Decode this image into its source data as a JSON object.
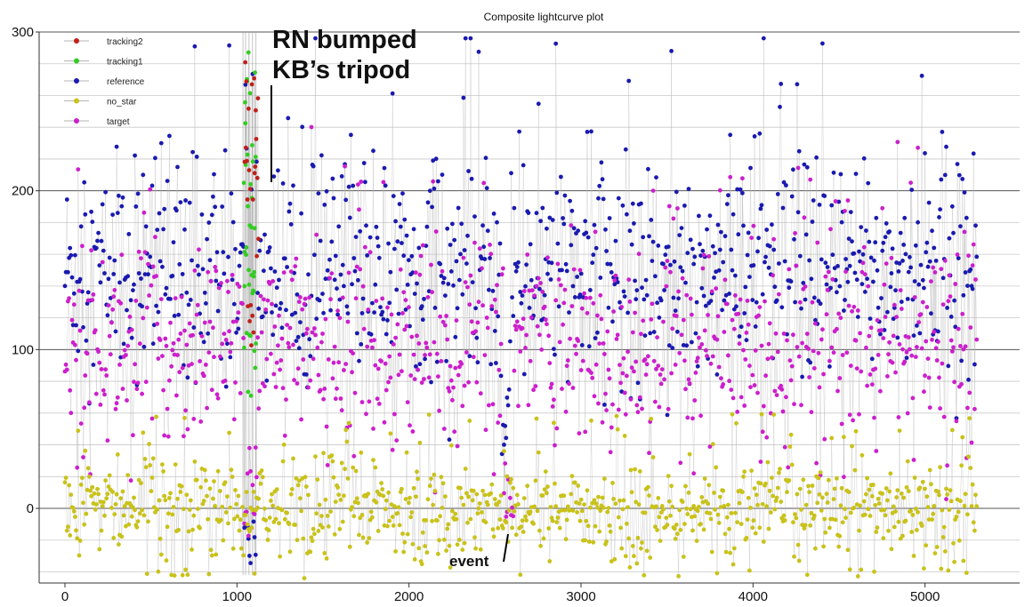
{
  "chart_data": {
    "type": "scatter",
    "title": "Composite lightcurve plot",
    "xlim": [
      -150,
      5550
    ],
    "ylim": [
      -47,
      300
    ],
    "xticks": [
      0,
      1000,
      2000,
      3000,
      4000,
      5000
    ],
    "yticks": [
      0,
      100,
      200,
      300
    ],
    "grid": true,
    "legend_position": "top-left",
    "series": [
      {
        "name": "tracking2",
        "color": "#c0201a",
        "x_range": [
          1030,
          1130
        ],
        "typical_range": [
          100,
          280
        ]
      },
      {
        "name": "tracking1",
        "color": "#33cc22",
        "x_range": [
          1030,
          1110
        ],
        "typical_range": [
          60,
          290
        ]
      },
      {
        "name": "reference",
        "color": "#1a1ab0",
        "x_range": [
          0,
          5300
        ],
        "typical_range": [
          90,
          260
        ]
      },
      {
        "name": "no_star",
        "color": "#c9c21a",
        "x_range": [
          0,
          5300
        ],
        "typical_range": [
          -40,
          55
        ]
      },
      {
        "name": "target",
        "color": "#cc1fcc",
        "x_range": [
          0,
          5300
        ],
        "typical_range": [
          40,
          170
        ]
      }
    ],
    "annotations": [
      {
        "text": "RN bumped",
        "x": 1200,
        "y": 295
      },
      {
        "text": "KB’s tripod",
        "x": 1200,
        "y": 281
      },
      {
        "text": "event",
        "x": 2560,
        "y": -35
      }
    ]
  }
}
